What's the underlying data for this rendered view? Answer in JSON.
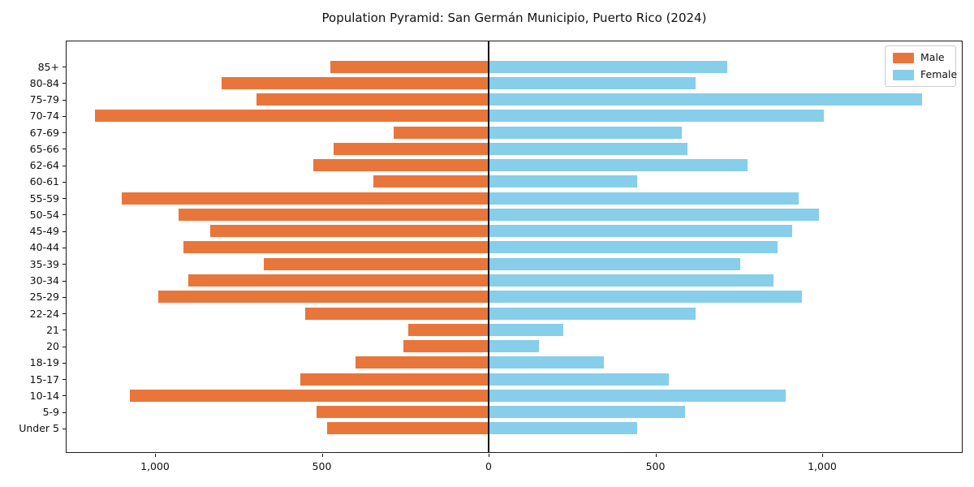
{
  "title": "Population Pyramid: San Germán Municipio, Puerto Rico (2024)",
  "legend": {
    "male_label": "Male",
    "female_label": "Female",
    "position": "upper right"
  },
  "colors": {
    "male": "#E8763B",
    "female": "#87CEEB",
    "axis": "#111111",
    "background": "#FFFFFF"
  },
  "chart_data": {
    "type": "bar",
    "variant": "population-pyramid",
    "title": "Population Pyramid: San Germán Municipio, Puerto Rico (2024)",
    "xlabel": "",
    "ylabel": "",
    "grid": false,
    "legend_position": "upper right",
    "categories_top_to_bottom": [
      "85+",
      "80-84",
      "75-79",
      "70-74",
      "67-69",
      "65-66",
      "62-64",
      "60-61",
      "55-59",
      "50-54",
      "45-49",
      "40-44",
      "35-39",
      "30-34",
      "25-29",
      "22-24",
      "21",
      "20",
      "18-19",
      "15-17",
      "10-14",
      "5-9",
      "Under 5"
    ],
    "series": [
      {
        "name": "Male",
        "direction": "left",
        "color": "#E8763B",
        "values": [
          475,
          800,
          695,
          1180,
          285,
          465,
          525,
          345,
          1100,
          930,
          835,
          915,
          675,
          900,
          990,
          550,
          240,
          255,
          400,
          565,
          1075,
          515,
          485
        ]
      },
      {
        "name": "Female",
        "direction": "right",
        "color": "#87CEEB",
        "values": [
          715,
          620,
          1300,
          1005,
          580,
          595,
          775,
          445,
          930,
          990,
          910,
          865,
          755,
          855,
          940,
          620,
          225,
          150,
          345,
          540,
          890,
          590,
          445
        ]
      }
    ],
    "x_axis": {
      "tick_values": [
        -1000,
        -500,
        0,
        500,
        1000
      ],
      "tick_labels": [
        "1,000",
        "500",
        "0",
        "500",
        "1,000"
      ],
      "xlim": [
        -1265,
        1423
      ]
    }
  }
}
